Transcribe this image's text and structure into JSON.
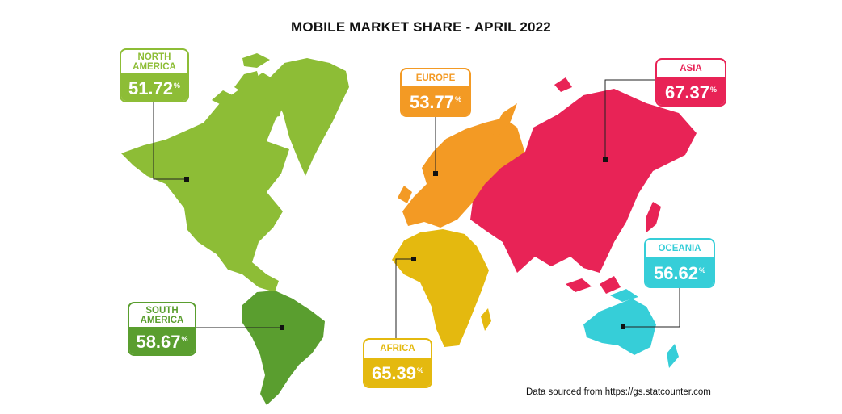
{
  "title": "MOBILE MARKET SHARE - APRIL 2022",
  "source": "Data sourced from https://gs.statcounter.com",
  "percent_symbol": "%",
  "colors": {
    "north_america": "#8dbd36",
    "south_america": "#5a9e2f",
    "europe": "#f39a24",
    "africa": "#e4b90f",
    "asia": "#e82356",
    "oceania": "#36ced8"
  },
  "regions": {
    "north_america": {
      "name": "NORTH AMERICA",
      "value": "51.72"
    },
    "south_america": {
      "name": "SOUTH AMERICA",
      "value": "58.67"
    },
    "europe": {
      "name": "EUROPE",
      "value": "53.77"
    },
    "africa": {
      "name": "AFRICA",
      "value": "65.39"
    },
    "asia": {
      "name": "ASIA",
      "value": "67.37"
    },
    "oceania": {
      "name": "OCEANIA",
      "value": "56.62"
    }
  }
}
